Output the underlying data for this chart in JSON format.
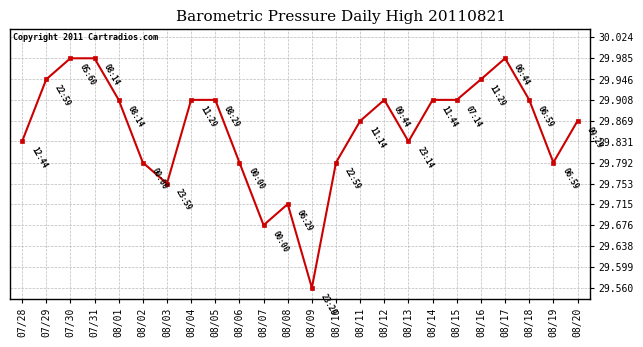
{
  "title": "Barometric Pressure Daily High 20110821",
  "copyright": "Copyright 2011 Cartradios.com",
  "x_labels": [
    "07/28",
    "07/29",
    "07/30",
    "07/31",
    "08/01",
    "08/02",
    "08/03",
    "08/04",
    "08/05",
    "08/06",
    "08/07",
    "08/08",
    "08/09",
    "08/10",
    "08/11",
    "08/12",
    "08/13",
    "08/14",
    "08/15",
    "08/16",
    "08/17",
    "08/18",
    "08/19",
    "08/20"
  ],
  "x_positions": [
    0,
    1,
    2,
    3,
    4,
    5,
    6,
    7,
    8,
    9,
    10,
    11,
    12,
    13,
    14,
    15,
    16,
    17,
    18,
    19,
    20,
    21,
    22,
    23
  ],
  "y_values": [
    29.831,
    29.946,
    29.985,
    29.985,
    29.908,
    29.792,
    29.753,
    29.908,
    29.908,
    29.792,
    29.676,
    29.715,
    29.56,
    29.792,
    29.869,
    29.908,
    29.831,
    29.908,
    29.908,
    29.946,
    29.985,
    29.908,
    29.792,
    29.869
  ],
  "time_labels": [
    "12:44",
    "22:59",
    "05:60",
    "08:14",
    "08:14",
    "00:00",
    "23:59",
    "11:29",
    "08:29",
    "00:00",
    "00:00",
    "06:29",
    "23:29",
    "22:59",
    "11:14",
    "09:44",
    "23:14",
    "11:44",
    "07:14",
    "11:29",
    "06:44",
    "06:59",
    "06:59",
    "09:29"
  ],
  "ylim_min": 29.54,
  "ylim_max": 30.04,
  "ytick_values": [
    29.56,
    29.599,
    29.638,
    29.676,
    29.715,
    29.753,
    29.792,
    29.831,
    29.869,
    29.908,
    29.946,
    29.985,
    30.024
  ],
  "ytick_labels": [
    "29.560",
    "29.599",
    "29.638",
    "29.676",
    "29.715",
    "29.753",
    "29.792",
    "29.831",
    "29.869",
    "29.908",
    "29.946",
    "29.985",
    "30.024"
  ],
  "line_color": "#cc0000",
  "marker_color": "#cc0000",
  "background_color": "#ffffff",
  "grid_color": "#bbbbbb",
  "title_fontsize": 11,
  "tick_fontsize": 7,
  "annot_fontsize": 5.5,
  "copyright_fontsize": 6
}
